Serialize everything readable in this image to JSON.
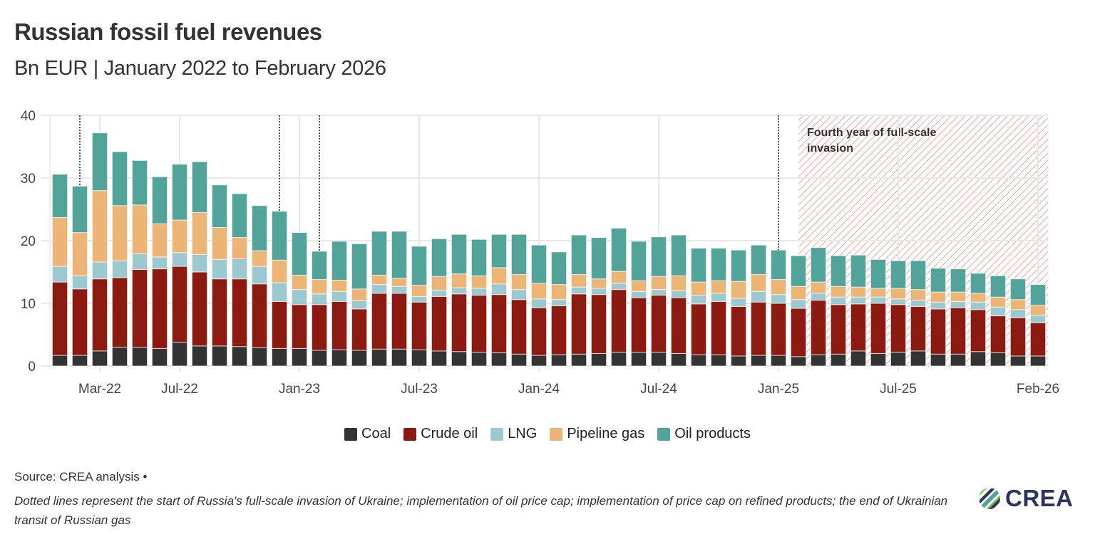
{
  "header": {
    "title": "Russian fossil fuel revenues",
    "subtitle": "Bn EUR | January 2022 to February 2026"
  },
  "chart_data": {
    "type": "bar",
    "stacked": true,
    "title": "Russian fossil fuel revenues",
    "subtitle": "Bn EUR | January 2022 to February 2026",
    "ylim": [
      0,
      40
    ],
    "yticks": [
      0,
      10,
      20,
      30,
      40
    ],
    "grid": true,
    "legend_position": "bottom",
    "categories": [
      "Jan-22",
      "Feb-22",
      "Mar-22",
      "Apr-22",
      "May-22",
      "Jun-22",
      "Jul-22",
      "Aug-22",
      "Sep-22",
      "Oct-22",
      "Nov-22",
      "Dec-22",
      "Jan-23",
      "Feb-23",
      "Mar-23",
      "Apr-23",
      "May-23",
      "Jun-23",
      "Jul-23",
      "Aug-23",
      "Sep-23",
      "Oct-23",
      "Nov-23",
      "Dec-23",
      "Jan-24",
      "Feb-24",
      "Mar-24",
      "Apr-24",
      "May-24",
      "Jun-24",
      "Jul-24",
      "Aug-24",
      "Sep-24",
      "Oct-24",
      "Nov-24",
      "Dec-24",
      "Jan-25",
      "Feb-25",
      "Mar-25",
      "Apr-25",
      "May-25",
      "Jun-25",
      "Jul-25",
      "Aug-25",
      "Sep-25",
      "Oct-25",
      "Nov-25",
      "Dec-25",
      "Jan-26",
      "Feb-26"
    ],
    "xtick_labels": [
      "Mar-22",
      "Jul-22",
      "Jan-23",
      "Jul-23",
      "Jan-24",
      "Jul-24",
      "Jan-25",
      "Jul-25",
      "Feb-26"
    ],
    "series": [
      {
        "name": "Coal",
        "color": "#333333",
        "values": [
          1.7,
          1.7,
          2.4,
          3.0,
          3.0,
          2.8,
          3.8,
          3.2,
          3.2,
          3.1,
          2.9,
          2.8,
          2.8,
          2.5,
          2.6,
          2.5,
          2.7,
          2.7,
          2.6,
          2.4,
          2.3,
          2.2,
          2.1,
          1.9,
          1.7,
          1.8,
          1.9,
          2.0,
          2.2,
          2.2,
          2.2,
          2.0,
          1.8,
          1.8,
          1.6,
          1.7,
          1.7,
          1.5,
          1.8,
          1.9,
          2.4,
          2.0,
          2.2,
          2.4,
          1.9,
          1.9,
          2.3,
          2.1,
          1.6,
          1.6
        ]
      },
      {
        "name": "Crude oil",
        "color": "#8b1a10",
        "values": [
          11.7,
          10.6,
          11.5,
          11.1,
          12.4,
          12.7,
          12.1,
          11.8,
          10.7,
          10.8,
          10.2,
          7.5,
          7.0,
          7.3,
          7.7,
          6.6,
          8.9,
          8.9,
          7.6,
          8.7,
          9.2,
          9.1,
          9.3,
          8.7,
          7.6,
          7.8,
          9.6,
          9.4,
          10.0,
          8.7,
          9.1,
          8.9,
          8.1,
          8.5,
          7.9,
          8.5,
          8.3,
          7.7,
          8.7,
          7.9,
          7.5,
          8.0,
          7.6,
          7.1,
          7.2,
          7.4,
          6.7,
          5.9,
          6.1,
          5.3
        ]
      },
      {
        "name": "LNG",
        "color": "#9cc8cf",
        "values": [
          2.5,
          2.1,
          2.7,
          2.7,
          2.5,
          1.9,
          2.2,
          2.8,
          3.1,
          3.2,
          2.8,
          3.0,
          2.4,
          1.7,
          1.6,
          1.3,
          1.4,
          1.1,
          0.9,
          1.0,
          1.0,
          1.1,
          1.7,
          1.6,
          1.4,
          1.0,
          1.1,
          1.0,
          1.0,
          1.0,
          0.9,
          1.1,
          1.4,
          1.3,
          1.3,
          1.7,
          1.4,
          1.4,
          1.1,
          1.2,
          1.1,
          1.0,
          0.9,
          1.0,
          1.1,
          1.0,
          1.2,
          1.4,
          1.3,
          1.2
        ]
      },
      {
        "name": "Pipeline gas",
        "color": "#ecb576",
        "values": [
          7.8,
          6.9,
          11.4,
          8.8,
          7.8,
          5.3,
          5.2,
          6.7,
          5.1,
          3.4,
          2.5,
          3.6,
          2.3,
          2.3,
          1.8,
          1.9,
          1.5,
          1.3,
          1.8,
          2.2,
          2.2,
          2.0,
          2.6,
          2.4,
          2.5,
          2.4,
          2.0,
          1.5,
          1.9,
          1.7,
          2.1,
          2.4,
          2.1,
          2.0,
          2.7,
          2.7,
          2.4,
          2.1,
          1.8,
          1.7,
          1.6,
          1.4,
          1.7,
          1.7,
          1.6,
          1.5,
          1.4,
          1.6,
          1.6,
          1.6
        ]
      },
      {
        "name": "Oil products",
        "color": "#52a39a",
        "values": [
          6.9,
          7.4,
          9.2,
          8.6,
          7.1,
          7.5,
          8.9,
          8.1,
          6.8,
          7.0,
          7.2,
          7.8,
          6.8,
          4.5,
          6.2,
          7.2,
          7.0,
          7.5,
          6.2,
          6.0,
          6.3,
          5.8,
          5.3,
          6.4,
          6.1,
          5.2,
          6.3,
          6.6,
          6.9,
          6.3,
          6.3,
          6.5,
          5.4,
          5.2,
          5.0,
          4.7,
          4.7,
          4.9,
          5.5,
          4.9,
          5.1,
          4.6,
          4.4,
          4.6,
          3.8,
          3.7,
          3.2,
          3.4,
          3.3,
          3.3
        ]
      }
    ],
    "reference_lines": [
      "Feb-22",
      "Dec-22",
      "Feb-23",
      "Jan-25"
    ],
    "shaded_region": {
      "from": "Feb-25",
      "to": "Feb-26",
      "label": "Fourth year of full-scale invasion",
      "color": "#f2a5a5"
    }
  },
  "footer": {
    "source": "Source: CREA analysis •",
    "note": "Dotted lines represent the start of Russia's full-scale invasion of Ukraine; implementation of oil price cap; implementation of price cap on refined products; the end of Ukrainian transit of Russian gas",
    "logo_text": "CREA"
  }
}
